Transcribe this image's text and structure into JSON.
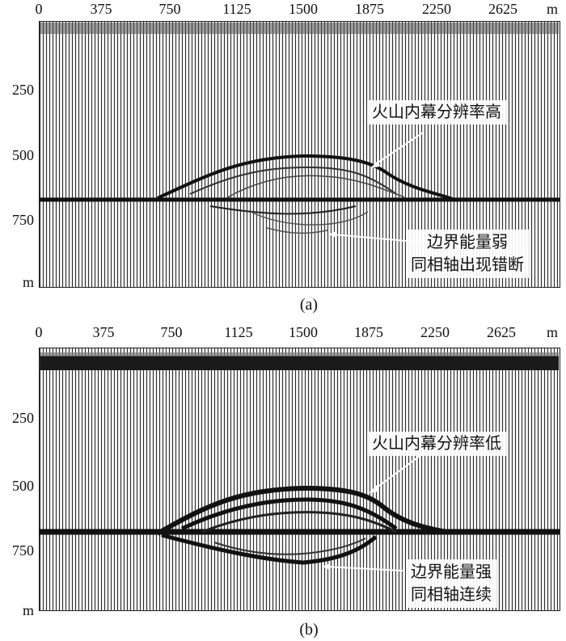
{
  "panel_a": {
    "x_ticks": [
      "0",
      "375",
      "750",
      "1125",
      "1500",
      "1875",
      "2250",
      "2625"
    ],
    "x_unit": "m",
    "y_ticks": [
      "250",
      "500",
      "750"
    ],
    "y_unit": "m",
    "annotation_top": "火山内幕分辨率高",
    "annotation_bottom_line1": "边界能量弱",
    "annotation_bottom_line2": "同相轴出现错断",
    "caption": "(a)"
  },
  "panel_b": {
    "x_ticks": [
      "0",
      "375",
      "750",
      "1125",
      "1500",
      "1875",
      "2250",
      "2625"
    ],
    "x_unit": "m",
    "y_ticks": [
      "250",
      "500",
      "750"
    ],
    "y_unit": "m",
    "annotation_top": "火山内幕分辨率低",
    "annotation_bottom_line1": "边界能量强",
    "annotation_bottom_line2": "同相轴连续",
    "caption": "(b)"
  },
  "colors": {
    "trace_dark": "#1a1a1a",
    "trace_light": "#f0f0f0",
    "callout_bg": "#ffffff"
  }
}
